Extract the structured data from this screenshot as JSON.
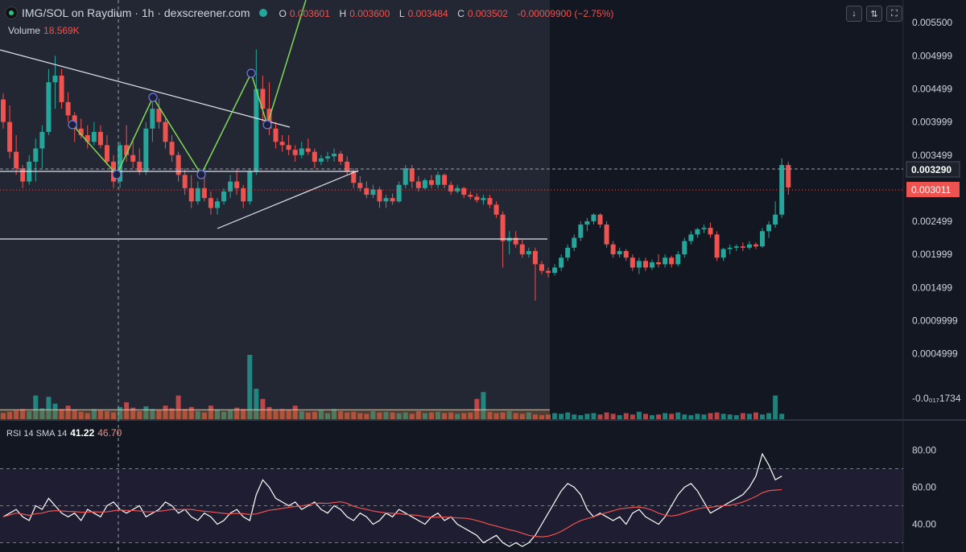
{
  "header": {
    "title": "IMG/SOL on Raydium · 1h · dexscreener.com",
    "ohlc": [
      {
        "label": "O",
        "value": "0.003601"
      },
      {
        "label": "H",
        "value": "0.003600"
      },
      {
        "label": "L",
        "value": "0.003484"
      },
      {
        "label": "C",
        "value": "0.003502"
      },
      {
        "label": "",
        "value": "-0.00009900 (−2.75%)"
      }
    ]
  },
  "volume": {
    "label": "Volume",
    "value": "18.569K"
  },
  "rsi": {
    "params": "RSI 14 SMA 14",
    "value": "41.22",
    "sma": "46.70"
  },
  "toolbar": {
    "down_icon": "↓",
    "swap_icon": "⇅",
    "expand_icon": "⛶"
  },
  "colors": {
    "up": "#26a69a",
    "down": "#ef5350",
    "bg": "#131722",
    "overlay": "#2a2e39",
    "pattern": "#7ed957",
    "rsi": "#ffffff",
    "rsi_sma": "#ef5350"
  },
  "chart_data": {
    "type": "candlestick",
    "ylim": [
      -0.0002,
      0.0056
    ],
    "price_ticks": [
      "0.005500",
      "0.004999",
      "0.004499",
      "0.003999",
      "0.003499",
      "0.002499",
      "0.001999",
      "0.001499",
      "0.0009999",
      "0.0004999",
      "-0.0₀₁₇1734"
    ],
    "price_tick_values": [
      0.0055,
      0.004999,
      0.004499,
      0.003999,
      0.003499,
      0.002499,
      0.001999,
      0.001499,
      0.0009999,
      0.0004999,
      -0.0001734
    ],
    "current_price_label": "0.003011",
    "crosshair_price_label": "0.003290",
    "current_price": 0.003011,
    "crosshair_price": 0.00329,
    "candles": [
      [
        0.00434,
        0.00443,
        0.0039,
        0.004
      ],
      [
        0.004,
        0.00425,
        0.00345,
        0.00355
      ],
      [
        0.00355,
        0.0038,
        0.0032,
        0.0033
      ],
      [
        0.0033,
        0.00335,
        0.003,
        0.0031
      ],
      [
        0.0031,
        0.0035,
        0.00305,
        0.0034
      ],
      [
        0.0034,
        0.00375,
        0.0031,
        0.0036
      ],
      [
        0.0036,
        0.00395,
        0.0033,
        0.00385
      ],
      [
        0.00385,
        0.0048,
        0.0038,
        0.0046
      ],
      [
        0.0046,
        0.005,
        0.0042,
        0.0047
      ],
      [
        0.0047,
        0.0048,
        0.0042,
        0.0043
      ],
      [
        0.0043,
        0.00445,
        0.004,
        0.0041
      ],
      [
        0.0041,
        0.00415,
        0.0037,
        0.0039
      ],
      [
        0.0039,
        0.00405,
        0.00375,
        0.0038
      ],
      [
        0.0038,
        0.00395,
        0.0036,
        0.0037
      ],
      [
        0.0037,
        0.004,
        0.00365,
        0.00385
      ],
      [
        0.00385,
        0.00395,
        0.0036,
        0.00365
      ],
      [
        0.00365,
        0.0038,
        0.00335,
        0.0034
      ],
      [
        0.0034,
        0.0035,
        0.003,
        0.0031
      ],
      [
        0.0031,
        0.0037,
        0.003,
        0.00365
      ],
      [
        0.00365,
        0.00395,
        0.0034,
        0.0035
      ],
      [
        0.0035,
        0.00375,
        0.0033,
        0.0034
      ],
      [
        0.0034,
        0.0036,
        0.0032,
        0.00325
      ],
      [
        0.00325,
        0.004,
        0.0032,
        0.0039
      ],
      [
        0.0039,
        0.0043,
        0.0037,
        0.0042
      ],
      [
        0.0042,
        0.00435,
        0.0039,
        0.004
      ],
      [
        0.004,
        0.00405,
        0.0036,
        0.0037
      ],
      [
        0.0037,
        0.0038,
        0.0034,
        0.0035
      ],
      [
        0.0035,
        0.00355,
        0.0031,
        0.0032
      ],
      [
        0.0032,
        0.0033,
        0.0029,
        0.003
      ],
      [
        0.003,
        0.0032,
        0.0027,
        0.0028
      ],
      [
        0.0028,
        0.0031,
        0.00275,
        0.003
      ],
      [
        0.003,
        0.0032,
        0.0028,
        0.00285
      ],
      [
        0.00285,
        0.00295,
        0.0026,
        0.0027
      ],
      [
        0.0027,
        0.00285,
        0.0026,
        0.0028
      ],
      [
        0.0028,
        0.003,
        0.00275,
        0.00295
      ],
      [
        0.00295,
        0.0032,
        0.00285,
        0.0031
      ],
      [
        0.0031,
        0.0033,
        0.0029,
        0.003
      ],
      [
        0.003,
        0.00305,
        0.0027,
        0.0028
      ],
      [
        0.0028,
        0.0033,
        0.00275,
        0.00325
      ],
      [
        0.00325,
        0.0051,
        0.0032,
        0.0045
      ],
      [
        0.0045,
        0.0047,
        0.004,
        0.0042
      ],
      [
        0.0042,
        0.0046,
        0.0038,
        0.0039
      ],
      [
        0.0039,
        0.004,
        0.0036,
        0.0037
      ],
      [
        0.0037,
        0.0038,
        0.00355,
        0.00365
      ],
      [
        0.00365,
        0.0038,
        0.0035,
        0.00358
      ],
      [
        0.00358,
        0.00365,
        0.0034,
        0.0035
      ],
      [
        0.0035,
        0.0037,
        0.00345,
        0.0036
      ],
      [
        0.0036,
        0.00375,
        0.0035,
        0.00355
      ],
      [
        0.00355,
        0.0036,
        0.0033,
        0.0034
      ],
      [
        0.0034,
        0.0035,
        0.00335,
        0.00345
      ],
      [
        0.00345,
        0.00355,
        0.0034,
        0.00348
      ],
      [
        0.00348,
        0.0036,
        0.0034,
        0.00352
      ],
      [
        0.00352,
        0.00356,
        0.00335,
        0.0034
      ],
      [
        0.0034,
        0.00348,
        0.0032,
        0.00325
      ],
      [
        0.00325,
        0.0033,
        0.003,
        0.00308
      ],
      [
        0.00308,
        0.00318,
        0.00295,
        0.003
      ],
      [
        0.003,
        0.0031,
        0.00285,
        0.0029
      ],
      [
        0.0029,
        0.00305,
        0.00285,
        0.00298
      ],
      [
        0.00298,
        0.00302,
        0.0027,
        0.0028
      ],
      [
        0.0028,
        0.0029,
        0.0027,
        0.00285
      ],
      [
        0.00285,
        0.00292,
        0.00275,
        0.0028
      ],
      [
        0.0028,
        0.0031,
        0.00278,
        0.00305
      ],
      [
        0.00305,
        0.00335,
        0.003,
        0.0033
      ],
      [
        0.0033,
        0.00335,
        0.003,
        0.0031
      ],
      [
        0.0031,
        0.00318,
        0.00295,
        0.003
      ],
      [
        0.003,
        0.00315,
        0.00298,
        0.00312
      ],
      [
        0.00312,
        0.0032,
        0.003,
        0.00305
      ],
      [
        0.00305,
        0.00325,
        0.003,
        0.0032
      ],
      [
        0.0032,
        0.00322,
        0.003,
        0.00305
      ],
      [
        0.00305,
        0.0031,
        0.0029,
        0.00295
      ],
      [
        0.00295,
        0.00305,
        0.00292,
        0.003
      ],
      [
        0.003,
        0.00302,
        0.00285,
        0.0029
      ],
      [
        0.0029,
        0.00295,
        0.00283,
        0.00287
      ],
      [
        0.00287,
        0.00292,
        0.00278,
        0.00282
      ],
      [
        0.00282,
        0.0029,
        0.00275,
        0.00285
      ],
      [
        0.00285,
        0.0029,
        0.0027,
        0.00275
      ],
      [
        0.00275,
        0.0028,
        0.00255,
        0.0026
      ],
      [
        0.0026,
        0.00265,
        0.0018,
        0.0022
      ],
      [
        0.0022,
        0.00235,
        0.002,
        0.00225
      ],
      [
        0.00225,
        0.00235,
        0.0021,
        0.00215
      ],
      [
        0.00215,
        0.00222,
        0.00195,
        0.002
      ],
      [
        0.002,
        0.0021,
        0.00195,
        0.00205
      ],
      [
        0.00205,
        0.0021,
        0.0013,
        0.00185
      ],
      [
        0.00185,
        0.0019,
        0.0017,
        0.00175
      ],
      [
        0.00175,
        0.0018,
        0.00165,
        0.00172
      ],
      [
        0.00172,
        0.00185,
        0.00168,
        0.0018
      ],
      [
        0.0018,
        0.002,
        0.00175,
        0.00195
      ],
      [
        0.00195,
        0.00215,
        0.0019,
        0.0021
      ],
      [
        0.0021,
        0.0023,
        0.00205,
        0.00225
      ],
      [
        0.00225,
        0.0025,
        0.0022,
        0.00245
      ],
      [
        0.00245,
        0.00255,
        0.00235,
        0.0025
      ],
      [
        0.0025,
        0.00262,
        0.00245,
        0.0026
      ],
      [
        0.0026,
        0.00262,
        0.0024,
        0.00245
      ],
      [
        0.00245,
        0.0025,
        0.0021,
        0.00215
      ],
      [
        0.00215,
        0.0022,
        0.00195,
        0.002
      ],
      [
        0.002,
        0.0021,
        0.00195,
        0.00205
      ],
      [
        0.00205,
        0.00208,
        0.0019,
        0.00195
      ],
      [
        0.00195,
        0.002,
        0.00175,
        0.0018
      ],
      [
        0.0018,
        0.00195,
        0.0017,
        0.0019
      ],
      [
        0.0019,
        0.00195,
        0.00175,
        0.0018
      ],
      [
        0.0018,
        0.00192,
        0.00176,
        0.00188
      ],
      [
        0.00188,
        0.002,
        0.0018,
        0.00185
      ],
      [
        0.00185,
        0.002,
        0.0018,
        0.00195
      ],
      [
        0.00195,
        0.00198,
        0.0018,
        0.00185
      ],
      [
        0.00185,
        0.00205,
        0.00182,
        0.002
      ],
      [
        0.002,
        0.00225,
        0.00195,
        0.0022
      ],
      [
        0.0022,
        0.00235,
        0.00215,
        0.0023
      ],
      [
        0.0023,
        0.0024,
        0.00225,
        0.00238
      ],
      [
        0.00238,
        0.00245,
        0.00232,
        0.0024
      ],
      [
        0.0024,
        0.00248,
        0.00225,
        0.0023
      ],
      [
        0.0023,
        0.00235,
        0.0019,
        0.00195
      ],
      [
        0.00195,
        0.0021,
        0.0019,
        0.00208
      ],
      [
        0.00208,
        0.00215,
        0.002,
        0.0021
      ],
      [
        0.0021,
        0.00215,
        0.00205,
        0.00212
      ],
      [
        0.00212,
        0.00218,
        0.00205,
        0.0021
      ],
      [
        0.0021,
        0.0022,
        0.00207,
        0.00215
      ],
      [
        0.00215,
        0.00218,
        0.00208,
        0.00212
      ],
      [
        0.00212,
        0.0024,
        0.0021,
        0.00235
      ],
      [
        0.00235,
        0.0025,
        0.00225,
        0.00245
      ],
      [
        0.00245,
        0.0028,
        0.0024,
        0.0026
      ],
      [
        0.0026,
        0.00345,
        0.00255,
        0.00335
      ],
      [
        0.00335,
        0.0034,
        0.0029,
        0.00301
      ]
    ],
    "volumes": [
      18,
      22,
      26,
      30,
      24,
      70,
      32,
      66,
      46,
      30,
      40,
      28,
      22,
      18,
      30,
      26,
      24,
      20,
      36,
      50,
      34,
      24,
      38,
      30,
      26,
      40,
      32,
      70,
      30,
      36,
      24,
      20,
      40,
      28,
      22,
      26,
      34,
      30,
      190,
      90,
      60,
      36,
      26,
      30,
      28,
      40,
      24,
      20,
      22,
      26,
      18,
      30,
      24,
      20,
      22,
      18,
      16,
      24,
      20,
      22,
      20,
      18,
      20,
      16,
      24,
      18,
      20,
      22,
      18,
      20,
      16,
      18,
      20,
      60,
      80,
      22,
      18,
      20,
      24,
      18,
      16,
      20,
      14,
      12,
      14,
      18,
      16,
      20,
      14,
      12,
      16,
      18,
      14,
      20,
      16,
      12,
      18,
      14,
      22,
      16,
      12,
      14,
      18,
      16,
      20,
      14,
      12,
      16,
      14,
      18,
      20,
      16,
      14,
      12,
      18,
      16,
      20,
      14,
      18,
      70,
      16
    ],
    "volume_ma": 28,
    "rsi_ylim": [
      25,
      85
    ],
    "rsi_ticks": [
      "80.00",
      "60.00",
      "40.00"
    ],
    "rsi_tick_values": [
      80,
      60,
      40
    ],
    "rsi_band": [
      30,
      70
    ],
    "rsi_values": [
      44,
      46,
      48,
      44,
      42,
      50,
      48,
      54,
      50,
      46,
      44,
      46,
      42,
      48,
      46,
      44,
      50,
      52,
      48,
      46,
      48,
      50,
      44,
      46,
      48,
      52,
      50,
      46,
      48,
      44,
      42,
      46,
      44,
      40,
      42,
      46,
      48,
      44,
      42,
      56,
      64,
      60,
      54,
      52,
      50,
      52,
      48,
      50,
      52,
      48,
      46,
      50,
      48,
      44,
      42,
      46,
      44,
      40,
      42,
      46,
      44,
      48,
      46,
      44,
      42,
      40,
      44,
      46,
      42,
      44,
      40,
      38,
      36,
      34,
      30,
      32,
      34,
      30,
      28,
      30,
      28,
      30,
      34,
      40,
      46,
      52,
      58,
      62,
      60,
      56,
      48,
      44,
      46,
      44,
      42,
      44,
      40,
      46,
      48,
      44,
      42,
      40,
      44,
      50,
      56,
      60,
      62,
      58,
      52,
      46,
      48,
      50,
      52,
      54,
      56,
      60,
      66,
      78,
      72,
      64,
      66
    ]
  }
}
